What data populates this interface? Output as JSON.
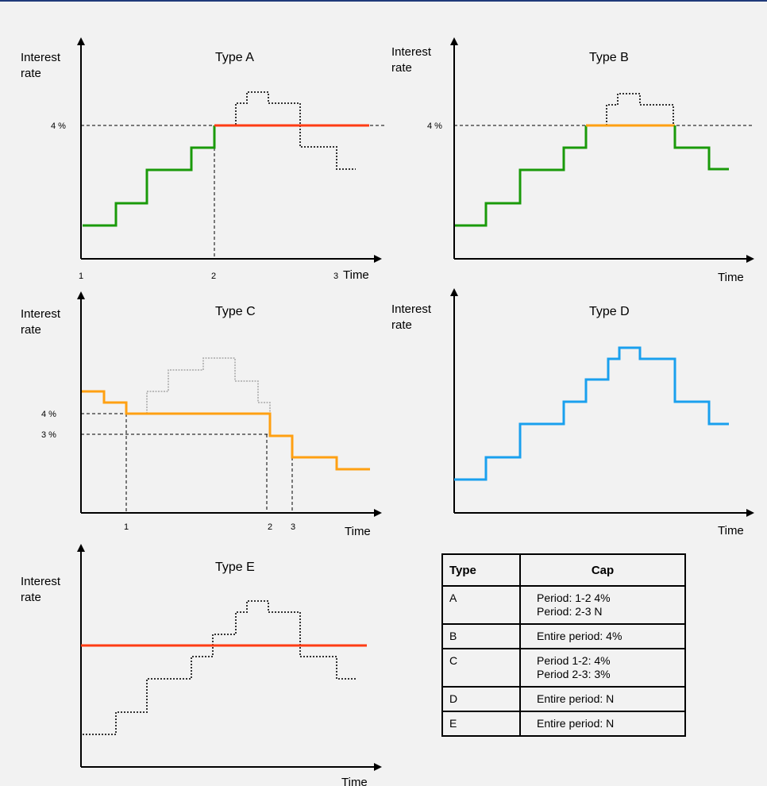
{
  "colors": {
    "green": "#1a9a0a",
    "red": "#ff3c14",
    "orange": "#ffa012",
    "blue": "#1aa0ee",
    "gray": "#a8a8a8"
  },
  "panels": [
    {
      "id": "A",
      "title": "Type  A",
      "ylabel1": "Interest",
      "ylabel2": "rate",
      "xlabel": "Time",
      "ticks": [
        {
          "text": "1"
        },
        {
          "text": "2"
        },
        {
          "text": "3"
        }
      ],
      "ylevels": [
        {
          "text": "4 %"
        }
      ]
    },
    {
      "id": "B",
      "title": "Type  B",
      "ylabel1": "Interest",
      "ylabel2": "rate",
      "xlabel": "Time",
      "ticks": [],
      "ylevels": [
        {
          "text": "4 %"
        }
      ]
    },
    {
      "id": "C",
      "title": "Type  C",
      "ylabel1": "Interest",
      "ylabel2": "rate",
      "xlabel": "Time",
      "ticks": [
        {
          "text": "1"
        },
        {
          "text": "2"
        },
        {
          "text": "3"
        }
      ],
      "ylevels": [
        {
          "text": "4 %"
        },
        {
          "text": "3 %"
        }
      ]
    },
    {
      "id": "D",
      "title": "Type  D",
      "ylabel1": "Interest",
      "ylabel2": "rate",
      "xlabel": "Time",
      "ticks": [],
      "ylevels": []
    },
    {
      "id": "E",
      "title": "Type  E",
      "ylabel1": "Interest",
      "ylabel2": "rate",
      "xlabel": "Time",
      "ticks": [],
      "ylevels": []
    }
  ],
  "table": {
    "headers": [
      "Type",
      "Cap"
    ],
    "rows": [
      {
        "type": "A",
        "cap": [
          "Period:  1-2  4%",
          "Period:  2-3  N"
        ]
      },
      {
        "type": "B",
        "cap": [
          "Entire period:  4%"
        ]
      },
      {
        "type": "C",
        "cap": [
          "Period  1-2:  4%",
          "Period  2-3:  3%"
        ]
      },
      {
        "type": "D",
        "cap": [
          "Entire period:  N"
        ]
      },
      {
        "type": "E",
        "cap": [
          "Entire period:  N"
        ]
      }
    ]
  }
}
